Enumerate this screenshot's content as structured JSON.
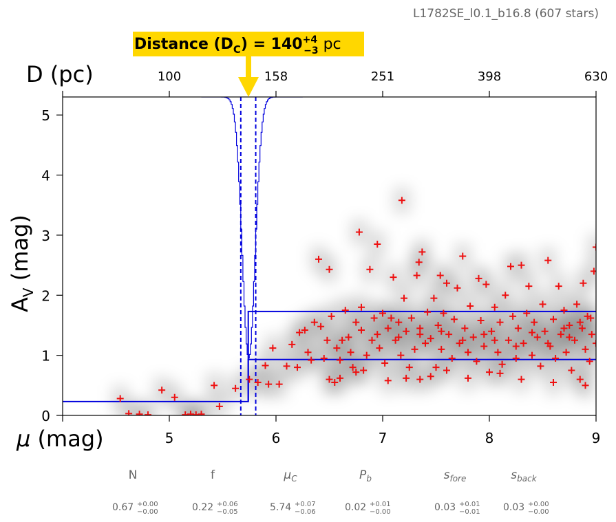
{
  "cloud_label": "L1782SE_l0.1_b16.8 (607 stars)",
  "banner": {
    "prefix": "Distance (D",
    "sub": "C",
    "eq": ") = 140",
    "sup": "+4",
    "subval": "−3",
    "unit": " pc",
    "color": "#ffd700"
  },
  "colors": {
    "fit_line": "#0000dd",
    "stars": "#ee1111",
    "arrow": "#ffd700"
  },
  "params": [
    {
      "name": "N",
      "italic": false,
      "val": "0.67",
      "sup": "+0.00",
      "sub": "−0.00"
    },
    {
      "name": "f",
      "italic": false,
      "val": "0.22",
      "sup": "+0.06",
      "sub": "−0.05"
    },
    {
      "name": "μC",
      "italic": true,
      "base": "μ",
      "subscript": "C",
      "val": "5.74",
      "sup": "+0.07",
      "sub": "−0.06"
    },
    {
      "name": "Pb",
      "italic": true,
      "base": "P",
      "subscript": "b",
      "val": "0.02",
      "sup": "+0.01",
      "sub": "−0.00"
    },
    {
      "name": "sfore",
      "italic": true,
      "base": "s",
      "subscript": "fore",
      "val": "0.03",
      "sup": "+0.01",
      "sub": "−0.01"
    },
    {
      "name": "sback",
      "italic": true,
      "base": "s",
      "subscript": "back",
      "val": "0.03",
      "sup": "+0.00",
      "sub": "−0.00"
    }
  ],
  "chart_data": {
    "type": "scatter",
    "xlabel": "μ (mag)",
    "ylabel": "AV (mag)",
    "top_xlabel": "D (pc)",
    "xlim": [
      4.0,
      9.0
    ],
    "ylim": [
      0,
      5.3
    ],
    "xticks": [
      "5",
      "6",
      "7",
      "8",
      "9"
    ],
    "yticks": [
      "0",
      "1",
      "2",
      "3",
      "4",
      "5"
    ],
    "top_ticks": [
      {
        "label": "100",
        "mu": 5.0
      },
      {
        "label": "158",
        "mu": 6.0
      },
      {
        "label": "251",
        "mu": 7.0
      },
      {
        "label": "398",
        "mu": 8.0
      },
      {
        "label": "630",
        "mu": 9.0
      }
    ],
    "fit": {
      "mu_cloud": 5.74,
      "foreground_av": 0.23,
      "background_av_low": 0.93,
      "background_av_high": 1.73
    },
    "distance_bounds_mu": [
      5.67,
      5.81
    ],
    "stars": [
      [
        4.54,
        0.28
      ],
      [
        4.62,
        0.03
      ],
      [
        4.72,
        0.02
      ],
      [
        4.8,
        0.01
      ],
      [
        4.93,
        0.42
      ],
      [
        5.05,
        0.3
      ],
      [
        5.15,
        0.01
      ],
      [
        5.2,
        0.02
      ],
      [
        5.25,
        0.01
      ],
      [
        5.3,
        0.02
      ],
      [
        5.42,
        0.5
      ],
      [
        5.47,
        0.15
      ],
      [
        5.62,
        0.45
      ],
      [
        5.75,
        0.6
      ],
      [
        5.83,
        0.55
      ],
      [
        5.9,
        0.83
      ],
      [
        5.93,
        0.52
      ],
      [
        5.97,
        1.12
      ],
      [
        6.03,
        0.52
      ],
      [
        6.1,
        0.82
      ],
      [
        6.15,
        1.18
      ],
      [
        6.2,
        0.8
      ],
      [
        6.22,
        1.38
      ],
      [
        6.27,
        1.42
      ],
      [
        6.3,
        1.05
      ],
      [
        6.33,
        0.92
      ],
      [
        6.36,
        1.55
      ],
      [
        6.4,
        2.6
      ],
      [
        6.42,
        1.48
      ],
      [
        6.45,
        0.95
      ],
      [
        6.48,
        1.25
      ],
      [
        6.5,
        2.43
      ],
      [
        6.5,
        0.6
      ],
      [
        6.52,
        1.65
      ],
      [
        6.55,
        0.55
      ],
      [
        6.57,
        1.12
      ],
      [
        6.6,
        0.92
      ],
      [
        6.62,
        1.25
      ],
      [
        6.65,
        1.75
      ],
      [
        6.68,
        1.3
      ],
      [
        6.7,
        1.05
      ],
      [
        6.72,
        0.8
      ],
      [
        6.75,
        1.55
      ],
      [
        6.78,
        3.05
      ],
      [
        6.8,
        1.8
      ],
      [
        6.8,
        1.42
      ],
      [
        6.82,
        0.75
      ],
      [
        6.85,
        1.0
      ],
      [
        6.88,
        2.43
      ],
      [
        6.9,
        1.25
      ],
      [
        6.92,
        1.62
      ],
      [
        6.95,
        2.85
      ],
      [
        6.97,
        1.12
      ],
      [
        7.0,
        1.7
      ],
      [
        7.02,
        0.87
      ],
      [
        7.05,
        1.45
      ],
      [
        7.08,
        1.62
      ],
      [
        7.1,
        2.3
      ],
      [
        7.12,
        1.25
      ],
      [
        7.15,
        1.55
      ],
      [
        7.17,
        1.0
      ],
      [
        7.18,
        3.58
      ],
      [
        7.2,
        1.95
      ],
      [
        7.22,
        1.4
      ],
      [
        7.25,
        0.8
      ],
      [
        7.27,
        1.62
      ],
      [
        7.3,
        1.1
      ],
      [
        7.32,
        2.33
      ],
      [
        7.34,
        2.55
      ],
      [
        7.35,
        1.45
      ],
      [
        7.37,
        2.72
      ],
      [
        7.4,
        1.2
      ],
      [
        7.42,
        1.72
      ],
      [
        7.45,
        1.28
      ],
      [
        7.48,
        1.95
      ],
      [
        7.5,
        0.8
      ],
      [
        7.52,
        1.5
      ],
      [
        7.54,
        2.33
      ],
      [
        7.55,
        1.1
      ],
      [
        7.57,
        1.7
      ],
      [
        7.6,
        2.2
      ],
      [
        7.62,
        1.35
      ],
      [
        7.65,
        0.95
      ],
      [
        7.67,
        1.6
      ],
      [
        7.7,
        2.12
      ],
      [
        7.72,
        1.2
      ],
      [
        7.75,
        2.65
      ],
      [
        7.77,
        1.45
      ],
      [
        7.8,
        1.05
      ],
      [
        7.82,
        1.82
      ],
      [
        7.85,
        1.3
      ],
      [
        7.88,
        0.9
      ],
      [
        7.9,
        2.28
      ],
      [
        7.92,
        1.58
      ],
      [
        7.95,
        1.15
      ],
      [
        7.97,
        2.18
      ],
      [
        8.0,
        0.72
      ],
      [
        8.02,
        1.4
      ],
      [
        8.05,
        1.8
      ],
      [
        8.08,
        1.05
      ],
      [
        8.1,
        1.55
      ],
      [
        8.12,
        0.85
      ],
      [
        8.15,
        2.0
      ],
      [
        8.18,
        1.25
      ],
      [
        8.2,
        2.48
      ],
      [
        8.22,
        1.65
      ],
      [
        8.25,
        0.95
      ],
      [
        8.27,
        1.45
      ],
      [
        8.3,
        2.5
      ],
      [
        8.32,
        1.2
      ],
      [
        8.35,
        1.7
      ],
      [
        8.37,
        2.15
      ],
      [
        8.4,
        1.0
      ],
      [
        8.42,
        1.55
      ],
      [
        8.45,
        1.3
      ],
      [
        8.48,
        0.82
      ],
      [
        8.5,
        1.85
      ],
      [
        8.52,
        1.4
      ],
      [
        8.55,
        2.58
      ],
      [
        8.57,
        1.15
      ],
      [
        8.6,
        1.6
      ],
      [
        8.62,
        0.95
      ],
      [
        8.65,
        2.15
      ],
      [
        8.67,
        1.35
      ],
      [
        8.7,
        1.75
      ],
      [
        8.72,
        1.05
      ],
      [
        8.75,
        1.5
      ],
      [
        8.77,
        0.75
      ],
      [
        8.8,
        1.25
      ],
      [
        8.82,
        1.85
      ],
      [
        8.85,
        0.6
      ],
      [
        8.87,
        1.45
      ],
      [
        8.88,
        2.2
      ],
      [
        8.9,
        1.1
      ],
      [
        8.92,
        1.65
      ],
      [
        8.94,
        0.9
      ],
      [
        8.96,
        1.35
      ],
      [
        8.98,
        2.4
      ],
      [
        9.0,
        2.8
      ],
      [
        9.0,
        1.2
      ],
      [
        7.45,
        0.65
      ],
      [
        7.6,
        0.75
      ],
      [
        7.8,
        0.62
      ],
      [
        8.1,
        0.7
      ],
      [
        8.3,
        0.6
      ],
      [
        8.6,
        0.55
      ],
      [
        8.9,
        0.5
      ],
      [
        7.05,
        0.58
      ],
      [
        7.22,
        0.62
      ],
      [
        7.35,
        0.6
      ],
      [
        6.75,
        0.72
      ],
      [
        6.6,
        0.62
      ],
      [
        8.05,
        1.25
      ],
      [
        8.4,
        1.38
      ],
      [
        8.7,
        1.45
      ],
      [
        8.85,
        1.55
      ],
      [
        8.95,
        1.62
      ],
      [
        8.75,
        1.3
      ],
      [
        8.55,
        1.2
      ],
      [
        8.25,
        1.15
      ],
      [
        7.95,
        1.35
      ],
      [
        7.75,
        1.25
      ],
      [
        7.55,
        1.4
      ],
      [
        7.35,
        1.35
      ],
      [
        7.15,
        1.3
      ],
      [
        6.95,
        1.35
      ]
    ]
  }
}
